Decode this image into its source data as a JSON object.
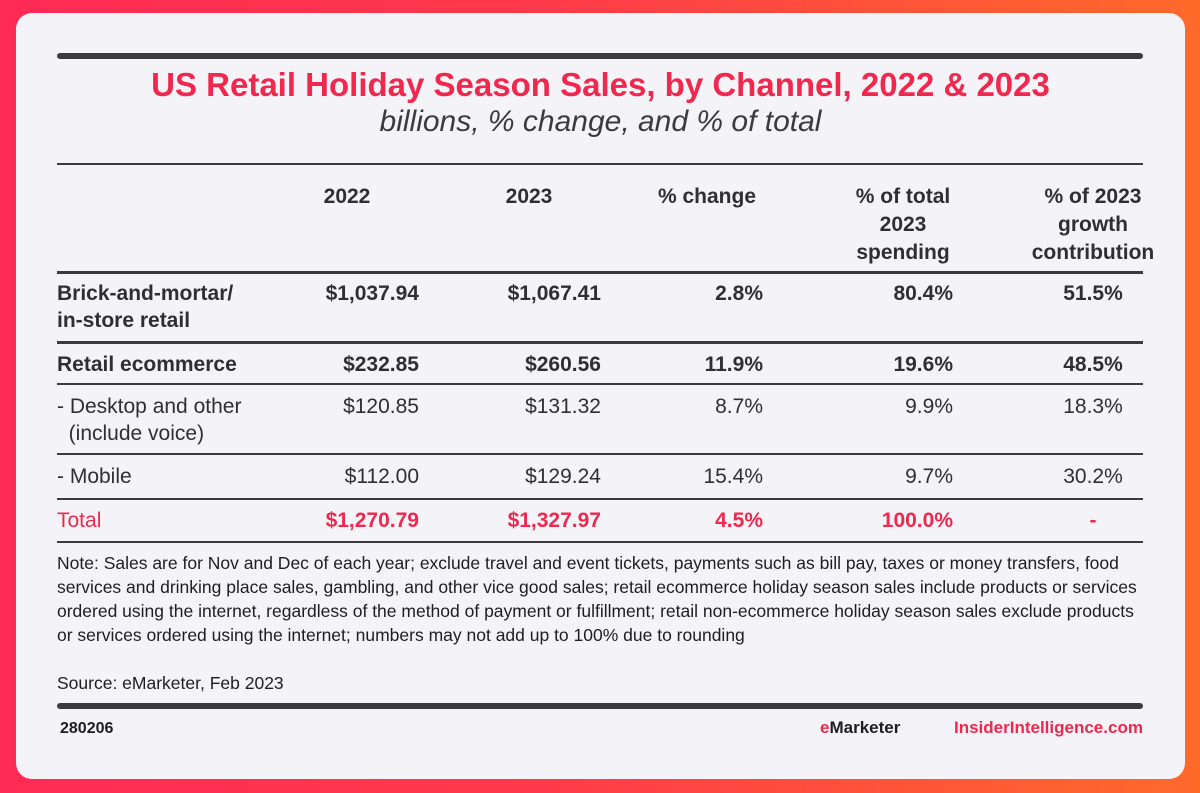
{
  "header": {
    "title": "US Retail Holiday Season Sales, by Channel, 2022 & 2023",
    "subtitle": "billions, % change, and % of total"
  },
  "chart_data": {
    "type": "table",
    "title": "US Retail Holiday Season Sales, by Channel, 2022 & 2023",
    "subtitle": "billions, % change, and % of total",
    "columns": [
      "",
      "2022",
      "2023",
      "% change",
      "% of total 2023 spending",
      "% of 2023 growth contribution"
    ],
    "column_lines": [
      [
        ""
      ],
      [
        "2022"
      ],
      [
        "2023"
      ],
      [
        "% change"
      ],
      [
        "% of total",
        "2023",
        "spending"
      ],
      [
        "% of 2023",
        "growth",
        "contribution"
      ]
    ],
    "rows": [
      {
        "label_lines": [
          "Brick-and-mortar/",
          "in-store retail"
        ],
        "label": "Brick-and-mortar/ in-store retail",
        "values": [
          "$1,037.94",
          "$1,067.41",
          "2.8%",
          "80.4%",
          "51.5%"
        ],
        "style": "bold"
      },
      {
        "label_lines": [
          "Retail ecommerce"
        ],
        "label": "Retail ecommerce",
        "values": [
          "$232.85",
          "$260.56",
          "11.9%",
          "19.6%",
          "48.5%"
        ],
        "style": "bold"
      },
      {
        "label_lines": [
          "- Desktop and other",
          "  (include voice)"
        ],
        "label": "- Desktop and other (include voice)",
        "values": [
          "$120.85",
          "$131.32",
          "8.7%",
          "9.9%",
          "18.3%"
        ],
        "style": "normal"
      },
      {
        "label_lines": [
          "- Mobile"
        ],
        "label": "- Mobile",
        "values": [
          "$112.00",
          "$129.24",
          "15.4%",
          "9.7%",
          "30.2%"
        ],
        "style": "normal"
      },
      {
        "label_lines": [
          "Total"
        ],
        "label": "Total",
        "values": [
          "$1,270.79",
          "$1,327.97",
          "4.5%",
          "100.0%",
          "-"
        ],
        "style": "total"
      }
    ]
  },
  "footer": {
    "note": "Note: Sales are for Nov and Dec of each year; exclude travel and event tickets, payments such as bill pay, taxes or money transfers, food services and drinking  place sales, gambling, and other vice good sales; retail ecommerce holiday season sales include products or services ordered using the internet, regardless of the method of payment or fulfillment; retail non-ecommerce holiday season sales exclude products or services ordered using the internet; numbers may not add up to 100% due to rounding",
    "source": "Source: eMarketer, Feb 2023",
    "chart_id": "280206",
    "brand_e": "e",
    "brand_rest": "Marketer",
    "site": "InsiderIntelligence.com"
  },
  "colors": {
    "accent": "#f0284e",
    "text": "#2f2f33",
    "rule": "#3a3a3f"
  }
}
